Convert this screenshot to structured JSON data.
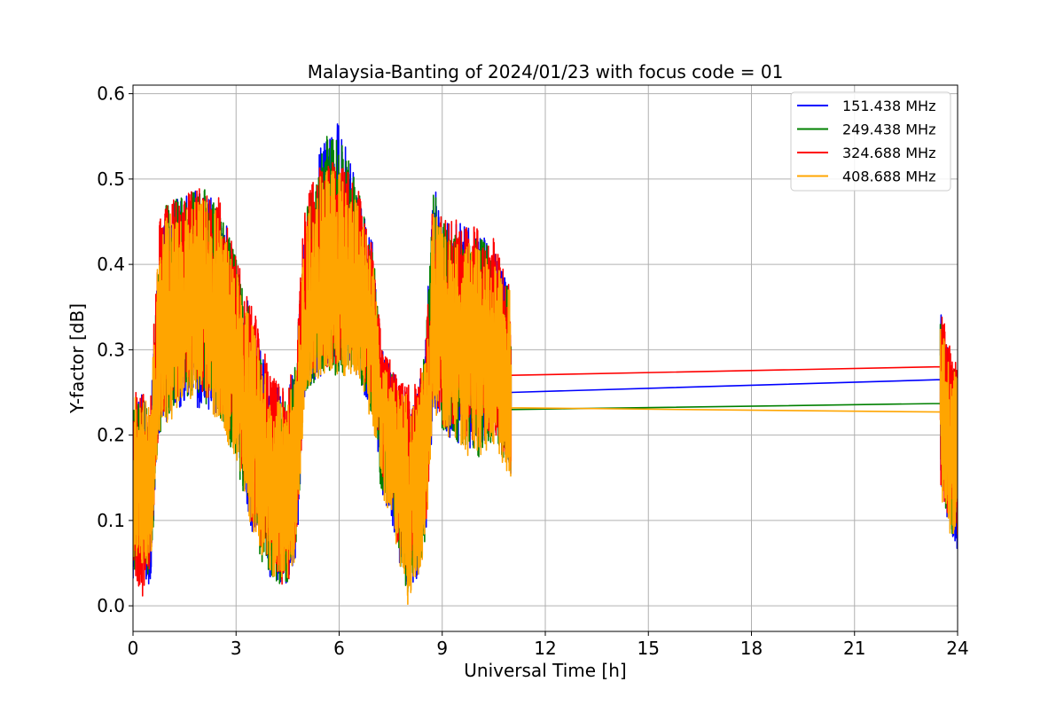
{
  "chart_data": {
    "type": "line",
    "title": "Malaysia-Banting of 2024/01/23 with focus code = 01",
    "xlabel": "Universal Time [h]",
    "ylabel": "Y-factor [dB]",
    "xlim": [
      0,
      24
    ],
    "ylim": [
      -0.03,
      0.61
    ],
    "xticks": [
      0,
      3,
      6,
      9,
      12,
      15,
      18,
      21,
      24
    ],
    "xtick_labels": [
      "0",
      "3",
      "6",
      "9",
      "12",
      "15",
      "18",
      "21",
      "24"
    ],
    "yticks": [
      0.0,
      0.1,
      0.2,
      0.3,
      0.4,
      0.5,
      0.6
    ],
    "ytick_labels": [
      "0.0",
      "0.1",
      "0.2",
      "0.3",
      "0.4",
      "0.5",
      "0.6"
    ],
    "grid": true,
    "legend_position": "top-right",
    "series": [
      {
        "name": "151.438 MHz",
        "color": "#0000ff",
        "x": [
          0.0,
          0.25,
          0.5,
          0.75,
          1.0,
          1.5,
          2.0,
          2.5,
          3.0,
          3.5,
          4.0,
          4.5,
          4.75,
          5.0,
          5.5,
          6.0,
          6.5,
          7.0,
          7.25,
          7.5,
          7.75,
          8.0,
          8.25,
          8.5,
          8.75,
          9.0,
          9.5,
          10.0,
          10.5,
          11.0,
          23.5,
          23.75,
          24.0
        ],
        "y": [
          0.15,
          0.16,
          0.12,
          0.28,
          0.32,
          0.35,
          0.36,
          0.34,
          0.28,
          0.2,
          0.15,
          0.12,
          0.15,
          0.3,
          0.38,
          0.4,
          0.37,
          0.32,
          0.25,
          0.2,
          0.16,
          0.12,
          0.11,
          0.18,
          0.3,
          0.33,
          0.32,
          0.3,
          0.31,
          0.25,
          0.265,
          0.22,
          0.16
        ],
        "band_low": [
          0.03,
          0.04,
          0.02,
          0.2,
          0.21,
          0.24,
          0.23,
          0.22,
          0.18,
          0.08,
          0.03,
          0.02,
          0.05,
          0.25,
          0.27,
          0.28,
          0.27,
          0.22,
          0.13,
          0.1,
          0.05,
          0.02,
          0.02,
          0.05,
          0.24,
          0.2,
          0.19,
          0.18,
          0.2,
          0.15,
          0.12,
          0.08,
          0.06
        ],
        "band_high": [
          0.22,
          0.25,
          0.22,
          0.42,
          0.49,
          0.48,
          0.49,
          0.47,
          0.42,
          0.33,
          0.26,
          0.25,
          0.3,
          0.45,
          0.55,
          0.58,
          0.5,
          0.42,
          0.3,
          0.28,
          0.26,
          0.26,
          0.25,
          0.3,
          0.51,
          0.45,
          0.45,
          0.44,
          0.42,
          0.37,
          0.35,
          0.3,
          0.28
        ]
      },
      {
        "name": "249.438 MHz",
        "color": "#008000",
        "x": [
          0.0,
          0.25,
          0.5,
          0.75,
          1.0,
          1.5,
          2.0,
          2.5,
          3.0,
          3.5,
          4.0,
          4.5,
          4.75,
          5.0,
          5.5,
          6.0,
          6.5,
          7.0,
          7.25,
          7.5,
          7.75,
          8.0,
          8.25,
          8.5,
          8.75,
          9.0,
          9.5,
          10.0,
          10.5,
          11.0,
          23.5,
          23.75,
          24.0
        ],
        "y": [
          0.15,
          0.15,
          0.13,
          0.29,
          0.33,
          0.36,
          0.37,
          0.34,
          0.27,
          0.2,
          0.15,
          0.12,
          0.16,
          0.31,
          0.38,
          0.4,
          0.37,
          0.32,
          0.24,
          0.21,
          0.16,
          0.11,
          0.12,
          0.18,
          0.3,
          0.32,
          0.31,
          0.3,
          0.3,
          0.23,
          0.237,
          0.2,
          0.17
        ],
        "band_low": [
          0.04,
          0.05,
          0.03,
          0.2,
          0.22,
          0.24,
          0.24,
          0.22,
          0.17,
          0.07,
          0.03,
          0.02,
          0.06,
          0.25,
          0.27,
          0.27,
          0.27,
          0.22,
          0.12,
          0.12,
          0.05,
          0.0,
          0.03,
          0.05,
          0.24,
          0.2,
          0.19,
          0.17,
          0.19,
          0.15,
          0.13,
          0.08,
          0.09
        ],
        "band_high": [
          0.23,
          0.25,
          0.22,
          0.44,
          0.48,
          0.48,
          0.5,
          0.47,
          0.41,
          0.33,
          0.26,
          0.24,
          0.3,
          0.46,
          0.55,
          0.55,
          0.5,
          0.41,
          0.29,
          0.28,
          0.25,
          0.25,
          0.25,
          0.3,
          0.49,
          0.45,
          0.44,
          0.44,
          0.42,
          0.37,
          0.34,
          0.3,
          0.28
        ]
      },
      {
        "name": "324.688 MHz",
        "color": "#ff0000",
        "x": [
          0.0,
          0.25,
          0.5,
          0.75,
          1.0,
          1.5,
          2.0,
          2.5,
          3.0,
          3.5,
          4.0,
          4.5,
          4.75,
          5.0,
          5.5,
          6.0,
          6.5,
          7.0,
          7.25,
          7.5,
          7.75,
          8.0,
          8.25,
          8.5,
          8.75,
          9.0,
          9.5,
          10.0,
          10.5,
          11.0,
          23.5,
          23.75,
          24.0
        ],
        "y": [
          0.16,
          0.15,
          0.14,
          0.3,
          0.34,
          0.37,
          0.37,
          0.35,
          0.29,
          0.21,
          0.16,
          0.13,
          0.17,
          0.32,
          0.39,
          0.41,
          0.38,
          0.33,
          0.27,
          0.22,
          0.17,
          0.13,
          0.12,
          0.19,
          0.31,
          0.34,
          0.32,
          0.31,
          0.31,
          0.27,
          0.28,
          0.23,
          0.18
        ],
        "band_low": [
          0.05,
          0.0,
          0.04,
          0.21,
          0.23,
          0.25,
          0.25,
          0.23,
          0.19,
          0.09,
          0.04,
          0.01,
          0.07,
          0.26,
          0.28,
          0.28,
          0.28,
          0.23,
          0.14,
          0.12,
          0.06,
          0.04,
          0.04,
          0.07,
          0.25,
          0.21,
          0.2,
          0.19,
          0.2,
          0.16,
          0.12,
          0.09,
          0.08
        ],
        "band_high": [
          0.26,
          0.25,
          0.24,
          0.45,
          0.47,
          0.49,
          0.49,
          0.48,
          0.41,
          0.35,
          0.27,
          0.26,
          0.31,
          0.47,
          0.53,
          0.52,
          0.5,
          0.42,
          0.3,
          0.29,
          0.26,
          0.27,
          0.26,
          0.3,
          0.5,
          0.46,
          0.45,
          0.45,
          0.43,
          0.37,
          0.35,
          0.31,
          0.28
        ]
      },
      {
        "name": "408.688 MHz",
        "color": "#ffa500",
        "x": [
          0.0,
          0.25,
          0.5,
          0.75,
          1.0,
          1.5,
          2.0,
          2.5,
          3.0,
          3.5,
          4.0,
          4.5,
          4.75,
          5.0,
          5.5,
          6.0,
          6.5,
          7.0,
          7.25,
          7.5,
          7.75,
          8.0,
          8.25,
          8.5,
          8.75,
          9.0,
          9.5,
          10.0,
          10.5,
          11.0,
          23.5,
          23.75,
          24.0
        ],
        "y": [
          0.15,
          0.15,
          0.13,
          0.28,
          0.32,
          0.35,
          0.35,
          0.33,
          0.27,
          0.19,
          0.14,
          0.12,
          0.15,
          0.3,
          0.37,
          0.39,
          0.36,
          0.31,
          0.23,
          0.2,
          0.16,
          0.12,
          0.11,
          0.17,
          0.29,
          0.31,
          0.3,
          0.29,
          0.29,
          0.232,
          0.227,
          0.19,
          0.16
        ],
        "band_low": [
          0.05,
          0.05,
          0.04,
          0.2,
          0.21,
          0.23,
          0.23,
          0.21,
          0.17,
          0.08,
          0.03,
          0.02,
          0.06,
          0.25,
          0.27,
          0.27,
          0.26,
          0.21,
          0.12,
          0.11,
          0.05,
          0.0,
          0.03,
          0.06,
          0.23,
          0.2,
          0.18,
          0.17,
          0.19,
          0.14,
          0.11,
          0.08,
          0.08
        ],
        "band_high": [
          0.25,
          0.24,
          0.24,
          0.43,
          0.46,
          0.47,
          0.48,
          0.46,
          0.4,
          0.33,
          0.25,
          0.24,
          0.29,
          0.45,
          0.51,
          0.51,
          0.48,
          0.4,
          0.28,
          0.27,
          0.25,
          0.25,
          0.24,
          0.29,
          0.47,
          0.44,
          0.43,
          0.42,
          0.41,
          0.37,
          0.33,
          0.29,
          0.27
        ]
      }
    ]
  }
}
